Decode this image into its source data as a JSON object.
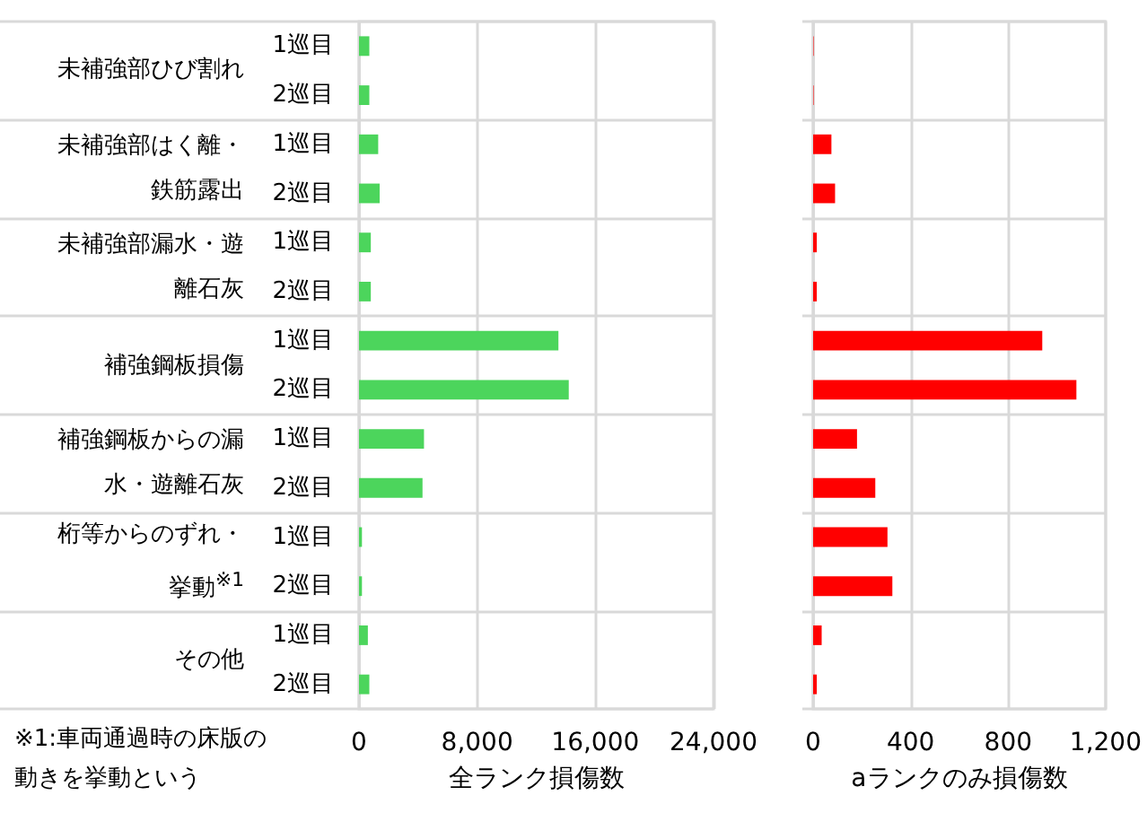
{
  "chart_data": [
    {
      "type": "bar",
      "orientation": "horizontal",
      "xlabel": "全ランク損傷数",
      "categories": [
        "未補強部ひび割れ",
        "未補強部はく離・鉄筋露出",
        "未補強部漏水・遊離石灰",
        "補強鋼板損傷",
        "補強鋼板からの漏水・遊離石灰",
        "桁等からのずれ・挙動$^{※1}$",
        "その他"
      ],
      "series": [
        {
          "name": "1巡目",
          "color": "#4cd55c",
          "values": [
            700,
            1300,
            800,
            13500,
            4400,
            200,
            600
          ]
        },
        {
          "name": "2巡目",
          "color": "#4cd55c",
          "values": [
            700,
            1400,
            800,
            14200,
            4300,
            200,
            700
          ]
        }
      ],
      "xlim": [
        0,
        24000
      ],
      "xticks": [
        0,
        {
          "value": 8000,
          "label": "8,000"
        },
        {
          "value": 16000,
          "label": "16,000"
        },
        {
          "value": 24000,
          "label": "24,000"
        }
      ],
      "grid": true,
      "legend": false,
      "annotations": [
        "※1:車両通過時の床版の動きを挙動という"
      ]
    },
    {
      "type": "bar",
      "orientation": "horizontal",
      "xlabel": "aランクのみ損傷数",
      "categories": [
        null,
        null,
        null,
        null,
        null,
        null,
        null
      ],
      "series": [
        {
          "color": "#ff0000",
          "values": [
            2,
            75,
            15,
            940,
            180,
            305,
            35
          ]
        },
        {
          "color": "#ff0000",
          "values": [
            2,
            90,
            15,
            1080,
            255,
            325,
            15
          ]
        }
      ],
      "xlim": [
        0,
        1200
      ],
      "xticks": [
        0,
        400,
        800,
        {
          "value": 1200,
          "label": "1,200"
        }
      ],
      "grid": true,
      "legend": false,
      "tick_labels": "x"
    }
  ]
}
